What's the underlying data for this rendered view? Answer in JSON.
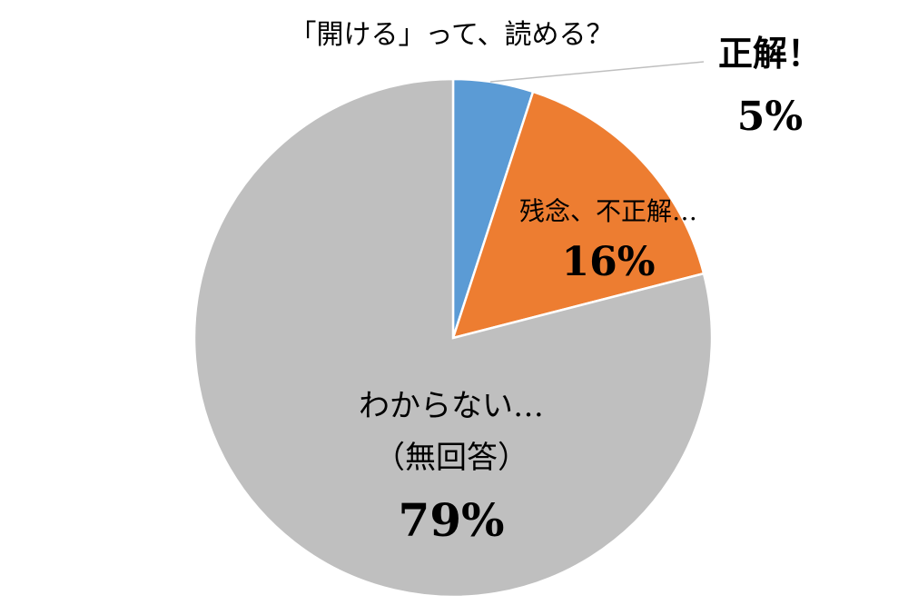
{
  "chart_data": {
    "type": "pie",
    "title": "「開ける」って、読める？",
    "slices": [
      {
        "label": "正解！",
        "value": 5,
        "value_label": "5%",
        "color": "#5b9bd5"
      },
      {
        "label": "残念、不正解…",
        "value": 16,
        "value_label": "16%",
        "color": "#ed7d31"
      },
      {
        "label": "わからない…",
        "sublabel": "（無回答）",
        "value": 79,
        "value_label": "79%",
        "color": "#bfbfbf"
      }
    ],
    "start": "12 o'clock",
    "direction": "clockwise",
    "slice_border_color": "#ffffff"
  }
}
